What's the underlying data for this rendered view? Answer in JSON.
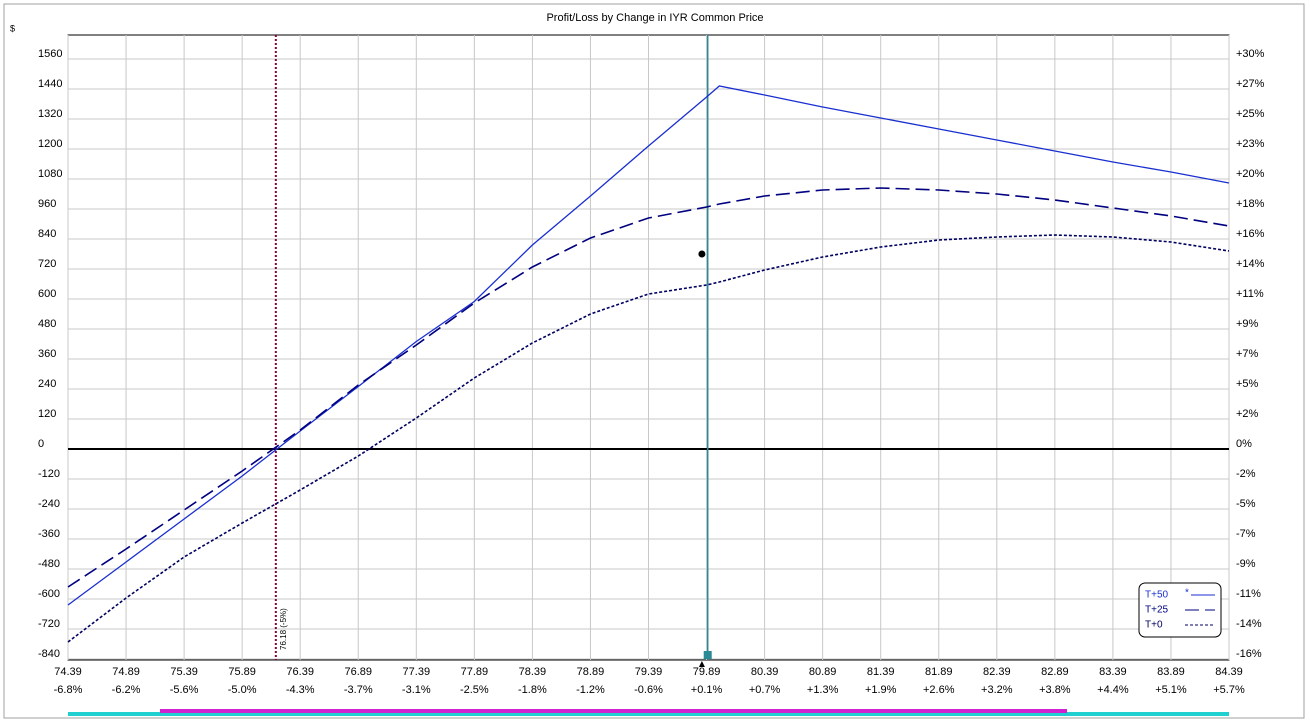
{
  "chart_data": {
    "type": "line",
    "title": "Profit/Loss by Change in IYR Common Price",
    "y_unit": "$",
    "x": [
      74.39,
      74.89,
      75.39,
      75.89,
      76.39,
      76.89,
      77.39,
      77.89,
      78.39,
      78.89,
      79.39,
      79.89,
      80.0,
      80.39,
      80.89,
      81.39,
      81.89,
      82.39,
      82.89,
      83.39,
      83.89,
      84.39
    ],
    "series": [
      {
        "name": "T+50",
        "color": "#1a2fd0",
        "dash": "solid",
        "marker": "*",
        "values": [
          -624,
          -452,
          -280,
          -108,
          72,
          250,
          430,
          590,
          816,
          1012,
          1212,
          1408,
          1452,
          1416,
          1368,
          1324,
          1280,
          1236,
          1192,
          1148,
          1108,
          1064
        ]
      },
      {
        "name": "T+25",
        "color": "#000080",
        "dash": "dashed",
        "values": [
          -552,
          -400,
          -244,
          -88,
          76,
          256,
          416,
          584,
          728,
          844,
          924,
          968,
          980,
          1012,
          1036,
          1044,
          1036,
          1020,
          996,
          964,
          932,
          892
        ]
      },
      {
        "name": "T+0",
        "color": "#000060",
        "dash": "dotted",
        "values": [
          -772,
          -596,
          -432,
          -296,
          -164,
          -28,
          124,
          284,
          424,
          540,
          620,
          656,
          668,
          716,
          768,
          808,
          836,
          848,
          856,
          848,
          828,
          792
        ]
      }
    ],
    "xlim": [
      74.39,
      84.39
    ],
    "xticks": [
      74.39,
      74.89,
      75.39,
      75.89,
      76.39,
      76.89,
      77.39,
      77.89,
      78.39,
      78.89,
      79.39,
      79.89,
      80.39,
      80.89,
      81.39,
      81.89,
      82.39,
      82.89,
      83.39,
      83.89,
      84.39
    ],
    "xtick_pct_labels": [
      "-6.8%",
      "-6.2%",
      "-5.6%",
      "-5.0%",
      "-4.3%",
      "-3.7%",
      "-3.1%",
      "-2.5%",
      "-1.8%",
      "-1.2%",
      "-0.6%",
      "+0.1%",
      "+0.7%",
      "+1.3%",
      "+1.9%",
      "+2.6%",
      "+3.2%",
      "+3.8%",
      "+4.4%",
      "+5.1%",
      "+5.7%"
    ],
    "ylim": [
      -844,
      1656
    ],
    "yticks": [
      1560,
      1440,
      1320,
      1200,
      1080,
      960,
      840,
      720,
      600,
      480,
      360,
      240,
      120,
      0,
      -120,
      -240,
      -360,
      -480,
      -600,
      -720,
      -840
    ],
    "ytick_pct_labels": [
      "+30%",
      "+27%",
      "+25%",
      "+23%",
      "+20%",
      "+18%",
      "+16%",
      "+14%",
      "+11%",
      "+9%",
      "+7%",
      "+5%",
      "+2%",
      "0%",
      "-2%",
      "-5%",
      "-7%",
      "-9%",
      "-11%",
      "-14%",
      "-16%"
    ],
    "grid": true,
    "legend": "lower right",
    "breakeven": {
      "x": 76.18,
      "label": "76.18 (-5%)",
      "color": "#800040"
    },
    "current_price": {
      "x": 79.9,
      "color": "#2a8a96"
    },
    "current_point": {
      "x": 79.85,
      "y": 780
    }
  }
}
